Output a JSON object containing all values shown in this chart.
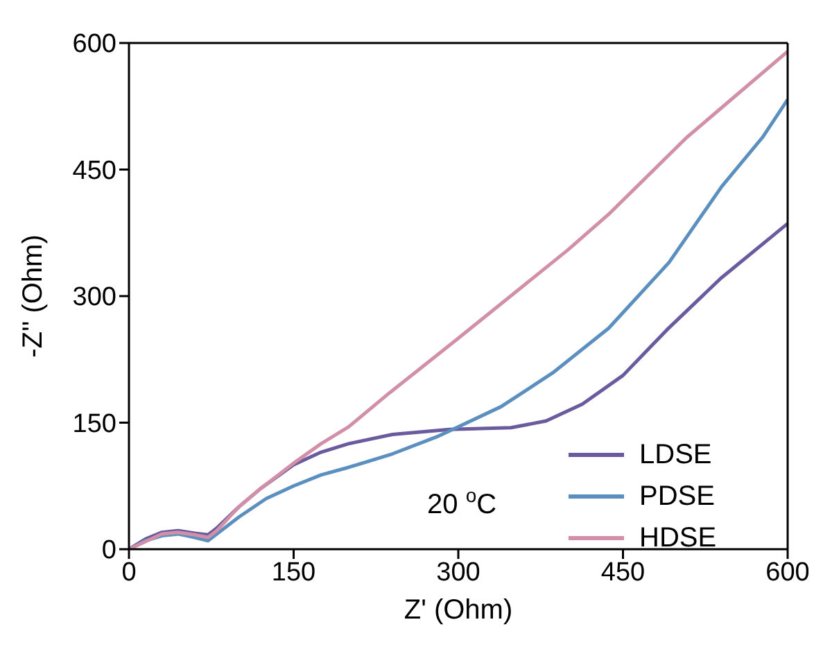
{
  "chart_data": {
    "type": "line",
    "xlabel": "Z' (Ohm)",
    "ylabel": "-Z'' (Ohm)",
    "xlim": [
      0,
      600
    ],
    "ylim": [
      0,
      600
    ],
    "xticks": [
      0,
      150,
      300,
      450,
      600
    ],
    "yticks": [
      0,
      150,
      300,
      450,
      600
    ],
    "grid": false,
    "legend": "bottom right",
    "marker": "none",
    "line_style": "solid",
    "annotations": [
      "20 $^{o}$C"
    ],
    "series": [
      {
        "name": "LDSE",
        "color": "#6a5a9e",
        "x": [
          0,
          15,
          30,
          45,
          60,
          72,
          80,
          100,
          120,
          150,
          175,
          200,
          240,
          292,
          348,
          380,
          413,
          450,
          490,
          539,
          600
        ],
        "values": [
          0,
          12,
          20,
          22,
          19,
          17,
          25,
          50,
          72,
          100,
          115,
          125,
          136,
          142,
          144,
          152,
          172,
          206,
          260,
          321,
          386
        ]
      },
      {
        "name": "PDSE",
        "color": "#5b8fbf",
        "x": [
          0,
          15,
          30,
          45,
          60,
          72,
          80,
          100,
          125,
          150,
          175,
          200,
          240,
          280,
          300,
          339,
          386,
          437,
          492,
          540,
          577,
          600
        ],
        "values": [
          0,
          10,
          16,
          18,
          14,
          10,
          18,
          38,
          60,
          75,
          88,
          97,
          113,
          133,
          145,
          169,
          209,
          262,
          340,
          430,
          488,
          533
        ]
      },
      {
        "name": "HDSE",
        "color": "#d28fa8",
        "x": [
          0,
          30,
          45,
          60,
          72,
          80,
          100,
          120,
          150,
          175,
          200,
          237,
          300,
          400,
          437,
          508,
          600
        ],
        "values": [
          0,
          18,
          20,
          17,
          14,
          22,
          50,
          72,
          102,
          125,
          145,
          185,
          250,
          355,
          397,
          488,
          590
        ]
      }
    ]
  }
}
